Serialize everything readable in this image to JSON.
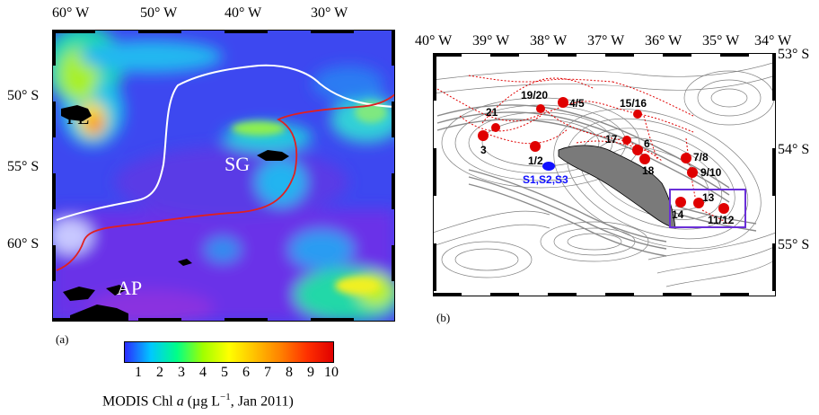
{
  "panel_a": {
    "lon_ticks": [
      "60° W",
      "50° W",
      "40° W",
      "30° W"
    ],
    "lat_ticks": [
      "50° S",
      "55° S",
      "60° S"
    ],
    "region_labels": {
      "fl": "FL",
      "sg": "SG",
      "ap": "AP"
    },
    "panel_label": "(a)"
  },
  "colorbar": {
    "ticks": [
      "1",
      "2",
      "3",
      "4",
      "5",
      "6",
      "7",
      "8",
      "9",
      "10"
    ],
    "label_prefix": "MODIS Chl ",
    "label_italic": "a",
    "label_suffix": " (µg L",
    "label_sup": "−1",
    "label_end": ", Jan 2011)",
    "colors": [
      "#2b2bff",
      "#00c8ff",
      "#00ff88",
      "#a0ff00",
      "#ffff00",
      "#ffc000",
      "#ff8000",
      "#ff3000",
      "#e00000"
    ]
  },
  "panel_b": {
    "lon_ticks": [
      "40° W",
      "39° W",
      "38° W",
      "37° W",
      "36° W",
      "35° W",
      "34° W"
    ],
    "lat_ticks": [
      "53° S",
      "54° S",
      "55° S"
    ],
    "panel_label": "(b)",
    "stations": [
      "21",
      "19/20",
      "4/5",
      "15/16",
      "1/2",
      "3",
      "17",
      "6",
      "18",
      "7/8",
      "9/10",
      "13",
      "14",
      "11/12"
    ],
    "control_label": "S1,S2,S3"
  }
}
